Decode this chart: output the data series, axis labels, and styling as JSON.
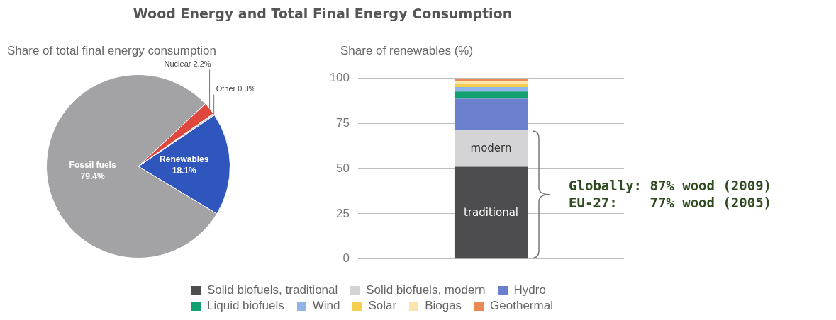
{
  "chart_data": [
    {
      "type": "pie",
      "title": "Wood Energy and Total Final Energy Consumption",
      "subtitle": "Share of total final energy consumption",
      "categories": [
        "Renewables",
        "Fossil fuels",
        "Nuclear",
        "Other"
      ],
      "values": [
        18.1,
        79.4,
        2.2,
        0.3
      ],
      "colors": [
        "#2f56bd",
        "#a3a3a5",
        "#e0473c",
        "#cfcfcf"
      ],
      "value_labels": [
        "18.1%",
        "79.4%",
        "2.2%",
        "0.3%"
      ],
      "legend": false
    },
    {
      "type": "bar",
      "ylabel": "Share of renewables (%)",
      "categories": [
        null
      ],
      "stacked": true,
      "series": [
        {
          "name": "Solid biofuels, traditional",
          "color": "#4d4d4f",
          "values": [
            51
          ],
          "value_labels": [
            "traditional"
          ]
        },
        {
          "name": "Solid biofuels, modern",
          "color": "#d4d4d6",
          "values": [
            20
          ],
          "value_labels": [
            "modern"
          ]
        },
        {
          "name": "Hydro",
          "color": "#6b7fcf",
          "values": [
            17.5
          ]
        },
        {
          "name": "Liquid biofuels",
          "color": "#12a070",
          "values": [
            4
          ]
        },
        {
          "name": "Wind",
          "color": "#8fb5e8",
          "values": [
            2.5
          ]
        },
        {
          "name": "Solar",
          "color": "#f5cf50",
          "values": [
            2
          ]
        },
        {
          "name": "Biogas",
          "color": "#fbe4b0",
          "values": [
            1.5
          ]
        },
        {
          "name": "Geothermal",
          "color": "#e98a55",
          "values": [
            1
          ]
        }
      ],
      "ylim": [
        0,
        100
      ],
      "yticks": [
        0,
        25,
        50,
        75,
        100
      ],
      "grid": "y",
      "legend": "bottom",
      "annotations": [
        "Globally: 87% wood (2009)",
        "EU-27:    77% wood (2005)"
      ]
    }
  ]
}
